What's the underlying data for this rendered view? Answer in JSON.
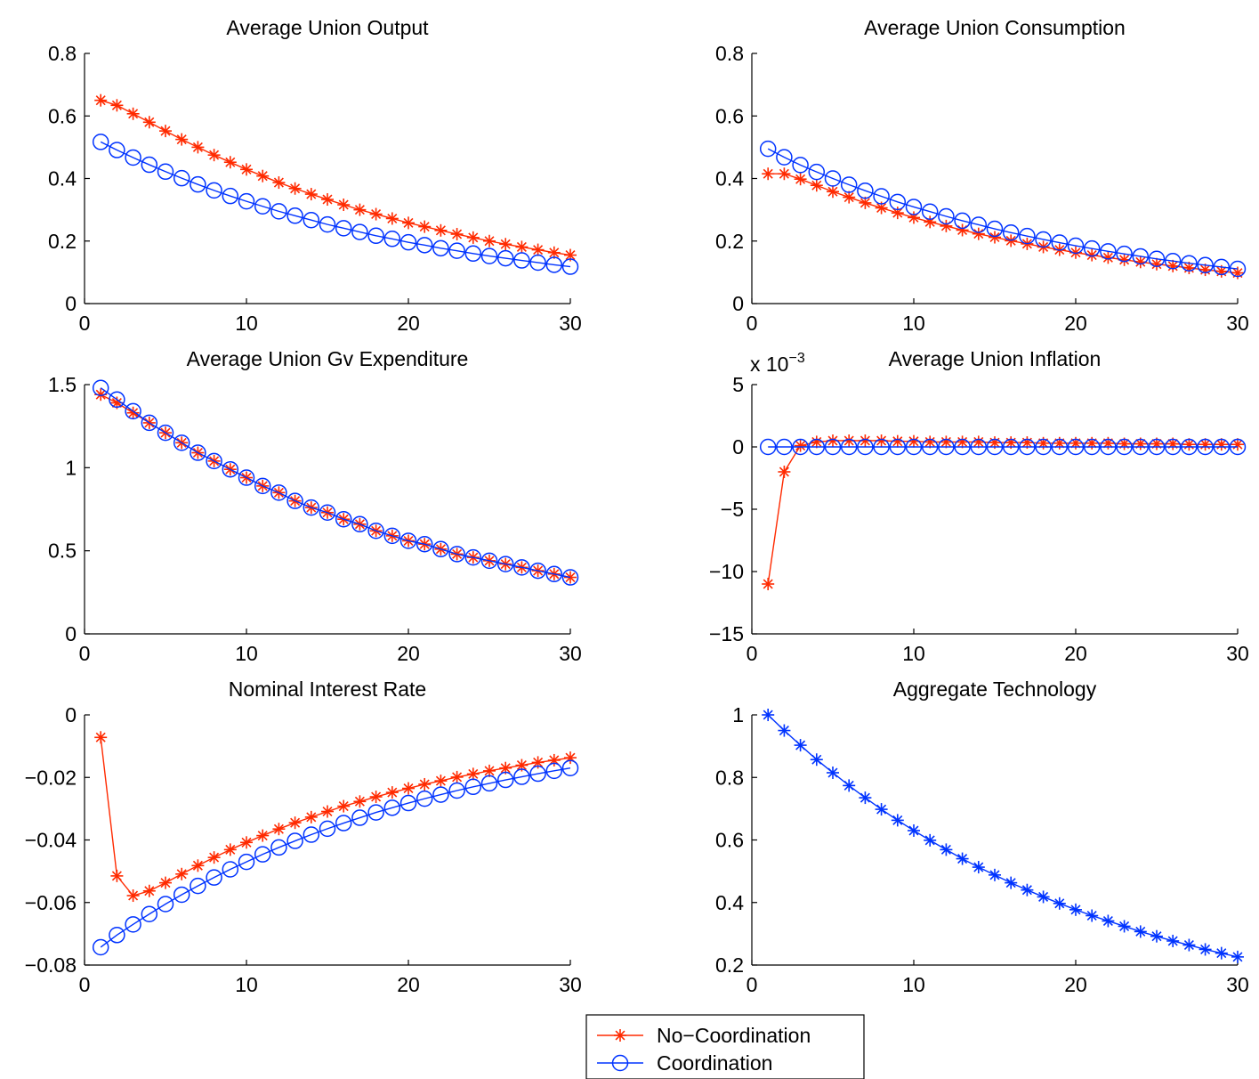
{
  "legend": {
    "items": [
      {
        "label": "No−Coordination",
        "color": "#ff2a00",
        "marker": "asterisk"
      },
      {
        "label": "Coordination",
        "color": "#0033ff",
        "marker": "circle"
      }
    ]
  },
  "chart_data": [
    {
      "type": "line",
      "title": "Average Union Output",
      "xlabel": "",
      "ylabel": "",
      "xlim": [
        0,
        30
      ],
      "ylim": [
        0,
        0.8
      ],
      "xticks": [
        0,
        10,
        20,
        30
      ],
      "yticks": [
        0,
        0.2,
        0.4,
        0.6,
        0.8
      ],
      "ytick_labels": [
        "0",
        "0.2",
        "0.4",
        "0.6",
        "0.8"
      ],
      "exponent_label": "",
      "x": [
        1,
        2,
        3,
        4,
        5,
        6,
        7,
        8,
        9,
        10,
        11,
        12,
        13,
        14,
        15,
        16,
        17,
        18,
        19,
        20,
        21,
        22,
        23,
        24,
        25,
        26,
        27,
        28,
        29,
        30
      ],
      "series": [
        {
          "name": "No−Coordination",
          "color": "#ff2a00",
          "marker": "asterisk",
          "values": [
            0.65,
            0.634,
            0.607,
            0.58,
            0.552,
            0.525,
            0.5,
            0.475,
            0.452,
            0.429,
            0.408,
            0.387,
            0.368,
            0.35,
            0.333,
            0.316,
            0.3,
            0.286,
            0.272,
            0.258,
            0.246,
            0.234,
            0.222,
            0.211,
            0.2,
            0.19,
            0.181,
            0.172,
            0.163,
            0.155
          ]
        },
        {
          "name": "Coordination",
          "color": "#0033ff",
          "marker": "circle",
          "values": [
            0.517,
            0.491,
            0.467,
            0.444,
            0.422,
            0.401,
            0.381,
            0.362,
            0.344,
            0.327,
            0.311,
            0.295,
            0.281,
            0.267,
            0.253,
            0.241,
            0.229,
            0.217,
            0.207,
            0.196,
            0.187,
            0.177,
            0.169,
            0.16,
            0.152,
            0.145,
            0.138,
            0.131,
            0.124,
            0.118
          ]
        }
      ]
    },
    {
      "type": "line",
      "title": "Average Union Consumption",
      "xlabel": "",
      "ylabel": "",
      "xlim": [
        0,
        30
      ],
      "ylim": [
        0,
        0.8
      ],
      "xticks": [
        0,
        10,
        20,
        30
      ],
      "yticks": [
        0,
        0.2,
        0.4,
        0.6,
        0.8
      ],
      "ytick_labels": [
        "0",
        "0.2",
        "0.4",
        "0.6",
        "0.8"
      ],
      "exponent_label": "",
      "x": [
        1,
        2,
        3,
        4,
        5,
        6,
        7,
        8,
        9,
        10,
        11,
        12,
        13,
        14,
        15,
        16,
        17,
        18,
        19,
        20,
        21,
        22,
        23,
        24,
        25,
        26,
        27,
        28,
        29,
        30
      ],
      "series": [
        {
          "name": "No−Coordination",
          "color": "#ff2a00",
          "marker": "asterisk",
          "values": [
            0.415,
            0.415,
            0.398,
            0.378,
            0.358,
            0.34,
            0.322,
            0.306,
            0.29,
            0.275,
            0.261,
            0.248,
            0.235,
            0.223,
            0.212,
            0.201,
            0.191,
            0.181,
            0.172,
            0.163,
            0.155,
            0.147,
            0.14,
            0.133,
            0.126,
            0.12,
            0.114,
            0.108,
            0.103,
            0.098
          ]
        },
        {
          "name": "Coordination",
          "color": "#0033ff",
          "marker": "circle",
          "values": [
            0.495,
            0.468,
            0.443,
            0.421,
            0.4,
            0.38,
            0.361,
            0.343,
            0.325,
            0.309,
            0.294,
            0.279,
            0.265,
            0.252,
            0.239,
            0.227,
            0.216,
            0.205,
            0.195,
            0.185,
            0.176,
            0.167,
            0.159,
            0.151,
            0.143,
            0.136,
            0.129,
            0.123,
            0.117,
            0.111
          ]
        }
      ]
    },
    {
      "type": "line",
      "title": "Average Union Gv Expenditure",
      "xlabel": "",
      "ylabel": "",
      "xlim": [
        0,
        30
      ],
      "ylim": [
        0,
        1.5
      ],
      "xticks": [
        0,
        10,
        20,
        30
      ],
      "yticks": [
        0,
        0.5,
        1,
        1.5
      ],
      "ytick_labels": [
        "0",
        "0.5",
        "1",
        "1.5"
      ],
      "exponent_label": "",
      "x": [
        1,
        2,
        3,
        4,
        5,
        6,
        7,
        8,
        9,
        10,
        11,
        12,
        13,
        14,
        15,
        16,
        17,
        18,
        19,
        20,
        21,
        22,
        23,
        24,
        25,
        26,
        27,
        28,
        29,
        30
      ],
      "series": [
        {
          "name": "No−Coordination",
          "color": "#ff2a00",
          "marker": "asterisk",
          "values": [
            1.44,
            1.39,
            1.33,
            1.27,
            1.21,
            1.15,
            1.09,
            1.04,
            0.99,
            0.94,
            0.89,
            0.85,
            0.8,
            0.76,
            0.73,
            0.69,
            0.66,
            0.62,
            0.59,
            0.56,
            0.54,
            0.51,
            0.48,
            0.46,
            0.44,
            0.42,
            0.4,
            0.38,
            0.36,
            0.34
          ]
        },
        {
          "name": "Coordination",
          "color": "#0033ff",
          "marker": "circle",
          "values": [
            1.48,
            1.41,
            1.34,
            1.27,
            1.21,
            1.15,
            1.09,
            1.04,
            0.99,
            0.94,
            0.89,
            0.85,
            0.8,
            0.76,
            0.73,
            0.69,
            0.66,
            0.62,
            0.59,
            0.56,
            0.54,
            0.51,
            0.48,
            0.46,
            0.44,
            0.42,
            0.4,
            0.38,
            0.36,
            0.34
          ]
        }
      ]
    },
    {
      "type": "line",
      "title": "Average Union Inflation",
      "xlabel": "",
      "ylabel": "",
      "xlim": [
        0,
        30
      ],
      "ylim": [
        -15,
        5
      ],
      "xticks": [
        0,
        10,
        20,
        30
      ],
      "yticks": [
        -15,
        -10,
        -5,
        0,
        5
      ],
      "ytick_labels": [
        "−15",
        "−10",
        "−5",
        "0",
        "5"
      ],
      "exponent_label": "x 10",
      "exponent_power": "−3",
      "x": [
        1,
        2,
        3,
        4,
        5,
        6,
        7,
        8,
        9,
        10,
        11,
        12,
        13,
        14,
        15,
        16,
        17,
        18,
        19,
        20,
        21,
        22,
        23,
        24,
        25,
        26,
        27,
        28,
        29,
        30
      ],
      "series": [
        {
          "name": "No−Coordination",
          "color": "#ff2a00",
          "marker": "asterisk",
          "values": [
            -11.0,
            -2.0,
            0.1,
            0.4,
            0.5,
            0.5,
            0.5,
            0.5,
            0.45,
            0.45,
            0.4,
            0.4,
            0.4,
            0.4,
            0.35,
            0.35,
            0.35,
            0.3,
            0.3,
            0.3,
            0.3,
            0.3,
            0.25,
            0.25,
            0.25,
            0.25,
            0.2,
            0.2,
            0.2,
            0.2
          ]
        },
        {
          "name": "Coordination",
          "color": "#0033ff",
          "marker": "circle",
          "values": [
            0,
            0,
            0,
            0,
            0,
            0,
            0,
            0,
            0,
            0,
            0,
            0,
            0,
            0,
            0,
            0,
            0,
            0,
            0,
            0,
            0,
            0,
            0,
            0,
            0,
            0,
            0,
            0,
            0,
            0
          ]
        }
      ]
    },
    {
      "type": "line",
      "title": "Nominal Interest Rate",
      "xlabel": "",
      "ylabel": "",
      "xlim": [
        0,
        30
      ],
      "ylim": [
        -0.08,
        0
      ],
      "xticks": [
        0,
        10,
        20,
        30
      ],
      "yticks": [
        -0.08,
        -0.06,
        -0.04,
        -0.02,
        0
      ],
      "ytick_labels": [
        "−0.08",
        "−0.06",
        "−0.04",
        "−0.02",
        "0"
      ],
      "exponent_label": "",
      "x": [
        1,
        2,
        3,
        4,
        5,
        6,
        7,
        8,
        9,
        10,
        11,
        12,
        13,
        14,
        15,
        16,
        17,
        18,
        19,
        20,
        21,
        22,
        23,
        24,
        25,
        26,
        27,
        28,
        29,
        30
      ],
      "series": [
        {
          "name": "No−Coordination",
          "color": "#ff2a00",
          "marker": "asterisk",
          "values": [
            -0.0072,
            -0.0515,
            -0.0578,
            -0.0563,
            -0.0537,
            -0.0509,
            -0.0482,
            -0.0456,
            -0.0431,
            -0.0408,
            -0.0386,
            -0.0365,
            -0.0345,
            -0.0327,
            -0.0309,
            -0.0292,
            -0.0277,
            -0.0262,
            -0.0248,
            -0.0235,
            -0.0222,
            -0.0211,
            -0.0199,
            -0.0189,
            -0.0179,
            -0.017,
            -0.0161,
            -0.0152,
            -0.0145,
            -0.0137
          ]
        },
        {
          "name": "Coordination",
          "color": "#0033ff",
          "marker": "circle",
          "values": [
            -0.0743,
            -0.0704,
            -0.067,
            -0.0637,
            -0.0605,
            -0.0575,
            -0.0547,
            -0.052,
            -0.0494,
            -0.047,
            -0.0446,
            -0.0424,
            -0.0403,
            -0.0383,
            -0.0364,
            -0.0346,
            -0.0329,
            -0.0312,
            -0.0297,
            -0.0282,
            -0.0268,
            -0.0255,
            -0.0242,
            -0.023,
            -0.0219,
            -0.0208,
            -0.0198,
            -0.0188,
            -0.0179,
            -0.017
          ]
        }
      ]
    },
    {
      "type": "line",
      "title": "Aggregate Technology",
      "xlabel": "",
      "ylabel": "",
      "xlim": [
        0,
        30
      ],
      "ylim": [
        0.2,
        1.0
      ],
      "xticks": [
        0,
        10,
        20,
        30
      ],
      "yticks": [
        0.2,
        0.4,
        0.6,
        0.8,
        1.0
      ],
      "ytick_labels": [
        "0.2",
        "0.4",
        "0.6",
        "0.8",
        "1"
      ],
      "exponent_label": "",
      "x": [
        1,
        2,
        3,
        4,
        5,
        6,
        7,
        8,
        9,
        10,
        11,
        12,
        13,
        14,
        15,
        16,
        17,
        18,
        19,
        20,
        21,
        22,
        23,
        24,
        25,
        26,
        27,
        28,
        29,
        30
      ],
      "series": [
        {
          "name": "",
          "color": "#0033ff",
          "marker": "asterisk",
          "values": [
            1.0,
            0.95,
            0.903,
            0.857,
            0.815,
            0.774,
            0.735,
            0.698,
            0.663,
            0.63,
            0.599,
            0.569,
            0.54,
            0.513,
            0.488,
            0.463,
            0.44,
            0.418,
            0.397,
            0.377,
            0.358,
            0.341,
            0.324,
            0.307,
            0.292,
            0.277,
            0.264,
            0.25,
            0.238,
            0.226
          ]
        }
      ]
    }
  ]
}
